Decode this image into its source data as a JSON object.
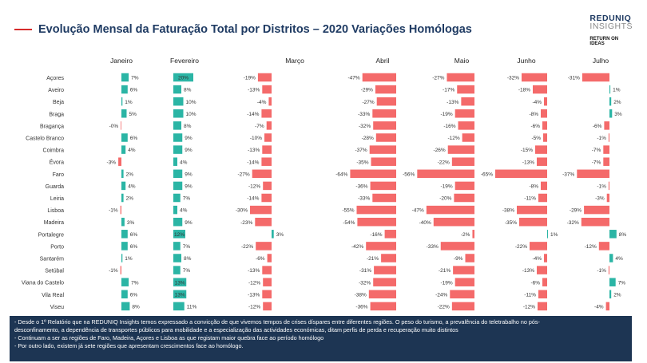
{
  "header": {
    "title": "Evolução Mensal da Faturação Total por Distritos – 2020 Variações Homólogas",
    "logo_line1": "REDUNIQ",
    "logo_line2": "INSIGHTS",
    "logo_line3": "RETURN ON IDEAS"
  },
  "colors": {
    "positive": "#2bb5a5",
    "negative": "#f46a6a",
    "title": "#1f3b63",
    "footer_bg": "#1d3553"
  },
  "chart_data": {
    "type": "bar",
    "orientation": "horizontal",
    "categories": [
      "Açores",
      "Aveiro",
      "Beja",
      "Braga",
      "Bragança",
      "Castelo Branco",
      "Coimbra",
      "Évora",
      "Faro",
      "Guarda",
      "Leiria",
      "Lisboa",
      "Madeira",
      "Portalegre",
      "Porto",
      "Santarém",
      "Setúbal",
      "Viana do Castelo",
      "Vila Real",
      "Viseu"
    ],
    "series": [
      {
        "name": "Janeiro",
        "values": [
          7,
          6,
          1,
          5,
          0,
          6,
          4,
          -3,
          2,
          4,
          2,
          -1,
          3,
          6,
          6,
          1,
          -1,
          7,
          6,
          8
        ],
        "labels": [
          "7%",
          "6%",
          "1%",
          "5%",
          "-0%",
          "6%",
          "4%",
          "-3%",
          "2%",
          "4%",
          "2%",
          "-1%",
          "3%",
          "6%",
          "6%",
          "1%",
          "-1%",
          "7%",
          "6%",
          "8%"
        ]
      },
      {
        "name": "Fevereiro",
        "values": [
          20,
          8,
          10,
          10,
          8,
          9,
          9,
          4,
          9,
          9,
          7,
          4,
          9,
          12,
          7,
          8,
          7,
          13,
          13,
          11
        ],
        "labels": [
          "20%",
          "8%",
          "10%",
          "10%",
          "8%",
          "9%",
          "9%",
          "4%",
          "9%",
          "9%",
          "7%",
          "4%",
          "9%",
          "12%",
          "7%",
          "8%",
          "7%",
          "13%",
          "13%",
          "11%"
        ]
      },
      {
        "name": "Março",
        "values": [
          -19,
          -13,
          -4,
          -14,
          -7,
          -10,
          -13,
          -14,
          -27,
          -12,
          -14,
          -30,
          -23,
          3,
          -22,
          -6,
          -13,
          -12,
          -13,
          -12
        ],
        "labels": [
          "-19%",
          "-13%",
          "-4%",
          "-14%",
          "-7%",
          "-10%",
          "-13%",
          "-14%",
          "-27%",
          "-12%",
          "-14%",
          "-30%",
          "-23%",
          "3%",
          "-22%",
          "-6%",
          "-13%",
          "-12%",
          "-13%",
          "-12%"
        ]
      },
      {
        "name": "Abril",
        "values": [
          -47,
          -29,
          -27,
          -33,
          -32,
          -28,
          -37,
          -35,
          -64,
          -36,
          -33,
          -55,
          -54,
          -16,
          -42,
          -21,
          -31,
          -32,
          -38,
          -36
        ],
        "labels": [
          "-47%",
          "-29%",
          "-27%",
          "-33%",
          "-32%",
          "-28%",
          "-37%",
          "-35%",
          "-64%",
          "-36%",
          "-33%",
          "-55%",
          "-54%",
          "-16%",
          "-42%",
          "-21%",
          "-31%",
          "-32%",
          "-38%",
          "-36%"
        ]
      },
      {
        "name": "Maio",
        "values": [
          -27,
          -17,
          -13,
          -19,
          -16,
          -12,
          -26,
          -22,
          -56,
          -19,
          -20,
          -47,
          -40,
          -2,
          -33,
          -9,
          -21,
          -19,
          -24,
          -22
        ],
        "labels": [
          "-27%",
          "-17%",
          "-13%",
          "-19%",
          "-16%",
          "-12%",
          "-26%",
          "-22%",
          "-56%",
          "-19%",
          "-20%",
          "-47%",
          "-40%",
          "-2%",
          "-33%",
          "-9%",
          "-21%",
          "-19%",
          "-24%",
          "-22%"
        ]
      },
      {
        "name": "Junho",
        "values": [
          -32,
          -18,
          -4,
          -8,
          -6,
          -5,
          -15,
          -13,
          -65,
          -8,
          -11,
          -38,
          -35,
          1,
          -22,
          -4,
          -13,
          -6,
          -11,
          -12
        ],
        "labels": [
          "-32%",
          "-18%",
          "-4%",
          "-8%",
          "-6%",
          "-5%",
          "-15%",
          "-13%",
          "-65%",
          "-8%",
          "-11%",
          "-38%",
          "-35%",
          "1%",
          "-22%",
          "-4%",
          "-13%",
          "-6%",
          "-11%",
          "-12%"
        ]
      },
      {
        "name": "Julho",
        "values": [
          -31,
          1,
          2,
          3,
          -6,
          -1,
          -7,
          -7,
          -37,
          -1,
          -3,
          -29,
          -32,
          8,
          -12,
          4,
          -1,
          7,
          2,
          -4
        ],
        "labels": [
          "-31%",
          "1%",
          "2%",
          "3%",
          "-6%",
          "-1%",
          "-7%",
          "-7%",
          "-37%",
          "-1%",
          "-3%",
          "-29%",
          "-32%",
          "8%",
          "-12%",
          "4%",
          "-1%",
          "7%",
          "2%",
          "-4%"
        ]
      }
    ]
  },
  "footer": {
    "lines": [
      "- Desde o 1º Relatório que na REDUNIQ Insights temos expressado a convicção de que vivemos tempos de crises díspares entre diferentes regiões. O peso do turismo, a prevalência do teletrabalho no pós-",
      "desconfinamento, a dependência de transportes públicos para mobilidade e a especialização das actividades económicas, ditam perfis de perda e recuperação muito distintos",
      "- Continuam a ser as regiões de Faro, Madeira, Açores e Lisboa as que registam maior quebra face ao período homólogo",
      "- Por outro lado, existem já sete regiões que apresentam crescimentos face ao homólogo."
    ]
  }
}
